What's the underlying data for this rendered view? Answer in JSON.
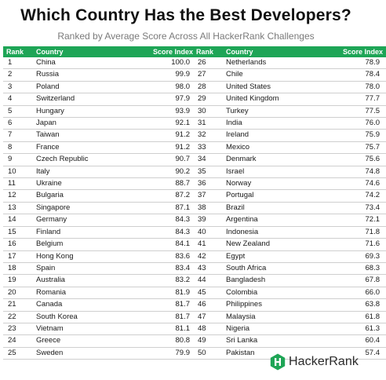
{
  "title": "Which Country Has the Best Developers?",
  "subtitle": "Ranked by Average Score Across All HackerRank Challenges",
  "accent_color": "#1ea556",
  "table_headers": {
    "rank": "Rank",
    "country": "Country",
    "score": "Score Index"
  },
  "left_rows": [
    {
      "rank": "1",
      "country": "China",
      "score": "100.0"
    },
    {
      "rank": "2",
      "country": "Russia",
      "score": "99.9"
    },
    {
      "rank": "3",
      "country": "Poland",
      "score": "98.0"
    },
    {
      "rank": "4",
      "country": "Switzerland",
      "score": "97.9"
    },
    {
      "rank": "5",
      "country": "Hungary",
      "score": "93.9"
    },
    {
      "rank": "6",
      "country": "Japan",
      "score": "92.1"
    },
    {
      "rank": "7",
      "country": "Taiwan",
      "score": "91.2"
    },
    {
      "rank": "8",
      "country": "France",
      "score": "91.2"
    },
    {
      "rank": "9",
      "country": "Czech Republic",
      "score": "90.7"
    },
    {
      "rank": "10",
      "country": "Italy",
      "score": "90.2"
    },
    {
      "rank": "11",
      "country": "Ukraine",
      "score": "88.7"
    },
    {
      "rank": "12",
      "country": "Bulgaria",
      "score": "87.2"
    },
    {
      "rank": "13",
      "country": "Singapore",
      "score": "87.1"
    },
    {
      "rank": "14",
      "country": "Germany",
      "score": "84.3"
    },
    {
      "rank": "15",
      "country": "Finland",
      "score": "84.3"
    },
    {
      "rank": "16",
      "country": "Belgium",
      "score": "84.1"
    },
    {
      "rank": "17",
      "country": "Hong Kong",
      "score": "83.6"
    },
    {
      "rank": "18",
      "country": "Spain",
      "score": "83.4"
    },
    {
      "rank": "19",
      "country": "Australia",
      "score": "83.2"
    },
    {
      "rank": "20",
      "country": "Romania",
      "score": "81.9"
    },
    {
      "rank": "21",
      "country": "Canada",
      "score": "81.7"
    },
    {
      "rank": "22",
      "country": "South Korea",
      "score": "81.7"
    },
    {
      "rank": "23",
      "country": "Vietnam",
      "score": "81.1"
    },
    {
      "rank": "24",
      "country": "Greece",
      "score": "80.8"
    },
    {
      "rank": "25",
      "country": "Sweden",
      "score": "79.9"
    }
  ],
  "right_rows": [
    {
      "rank": "26",
      "country": "Netherlands",
      "score": "78.9"
    },
    {
      "rank": "27",
      "country": "Chile",
      "score": "78.4"
    },
    {
      "rank": "28",
      "country": "United States",
      "score": "78.0"
    },
    {
      "rank": "29",
      "country": "United Kingdom",
      "score": "77.7"
    },
    {
      "rank": "30",
      "country": "Turkey",
      "score": "77.5"
    },
    {
      "rank": "31",
      "country": "India",
      "score": "76.0"
    },
    {
      "rank": "32",
      "country": "Ireland",
      "score": "75.9"
    },
    {
      "rank": "33",
      "country": "Mexico",
      "score": "75.7"
    },
    {
      "rank": "34",
      "country": "Denmark",
      "score": "75.6"
    },
    {
      "rank": "35",
      "country": "Israel",
      "score": "74.8"
    },
    {
      "rank": "36",
      "country": "Norway",
      "score": "74.6"
    },
    {
      "rank": "37",
      "country": "Portugal",
      "score": "74.2"
    },
    {
      "rank": "38",
      "country": "Brazil",
      "score": "73.4"
    },
    {
      "rank": "39",
      "country": "Argentina",
      "score": "72.1"
    },
    {
      "rank": "40",
      "country": "Indonesia",
      "score": "71.8"
    },
    {
      "rank": "41",
      "country": "New Zealand",
      "score": "71.6"
    },
    {
      "rank": "42",
      "country": "Egypt",
      "score": "69.3"
    },
    {
      "rank": "43",
      "country": "South Africa",
      "score": "68.3"
    },
    {
      "rank": "44",
      "country": "Bangladesh",
      "score": "67.8"
    },
    {
      "rank": "45",
      "country": "Colombia",
      "score": "66.0"
    },
    {
      "rank": "46",
      "country": "Philippines",
      "score": "63.8"
    },
    {
      "rank": "47",
      "country": "Malaysia",
      "score": "61.8"
    },
    {
      "rank": "48",
      "country": "Nigeria",
      "score": "61.3"
    },
    {
      "rank": "49",
      "country": "Sri Lanka",
      "score": "60.4"
    },
    {
      "rank": "50",
      "country": "Pakistan",
      "score": "57.4"
    }
  ],
  "logo": {
    "icon": "hackerrank-logo-icon",
    "text": "HackerRank"
  }
}
